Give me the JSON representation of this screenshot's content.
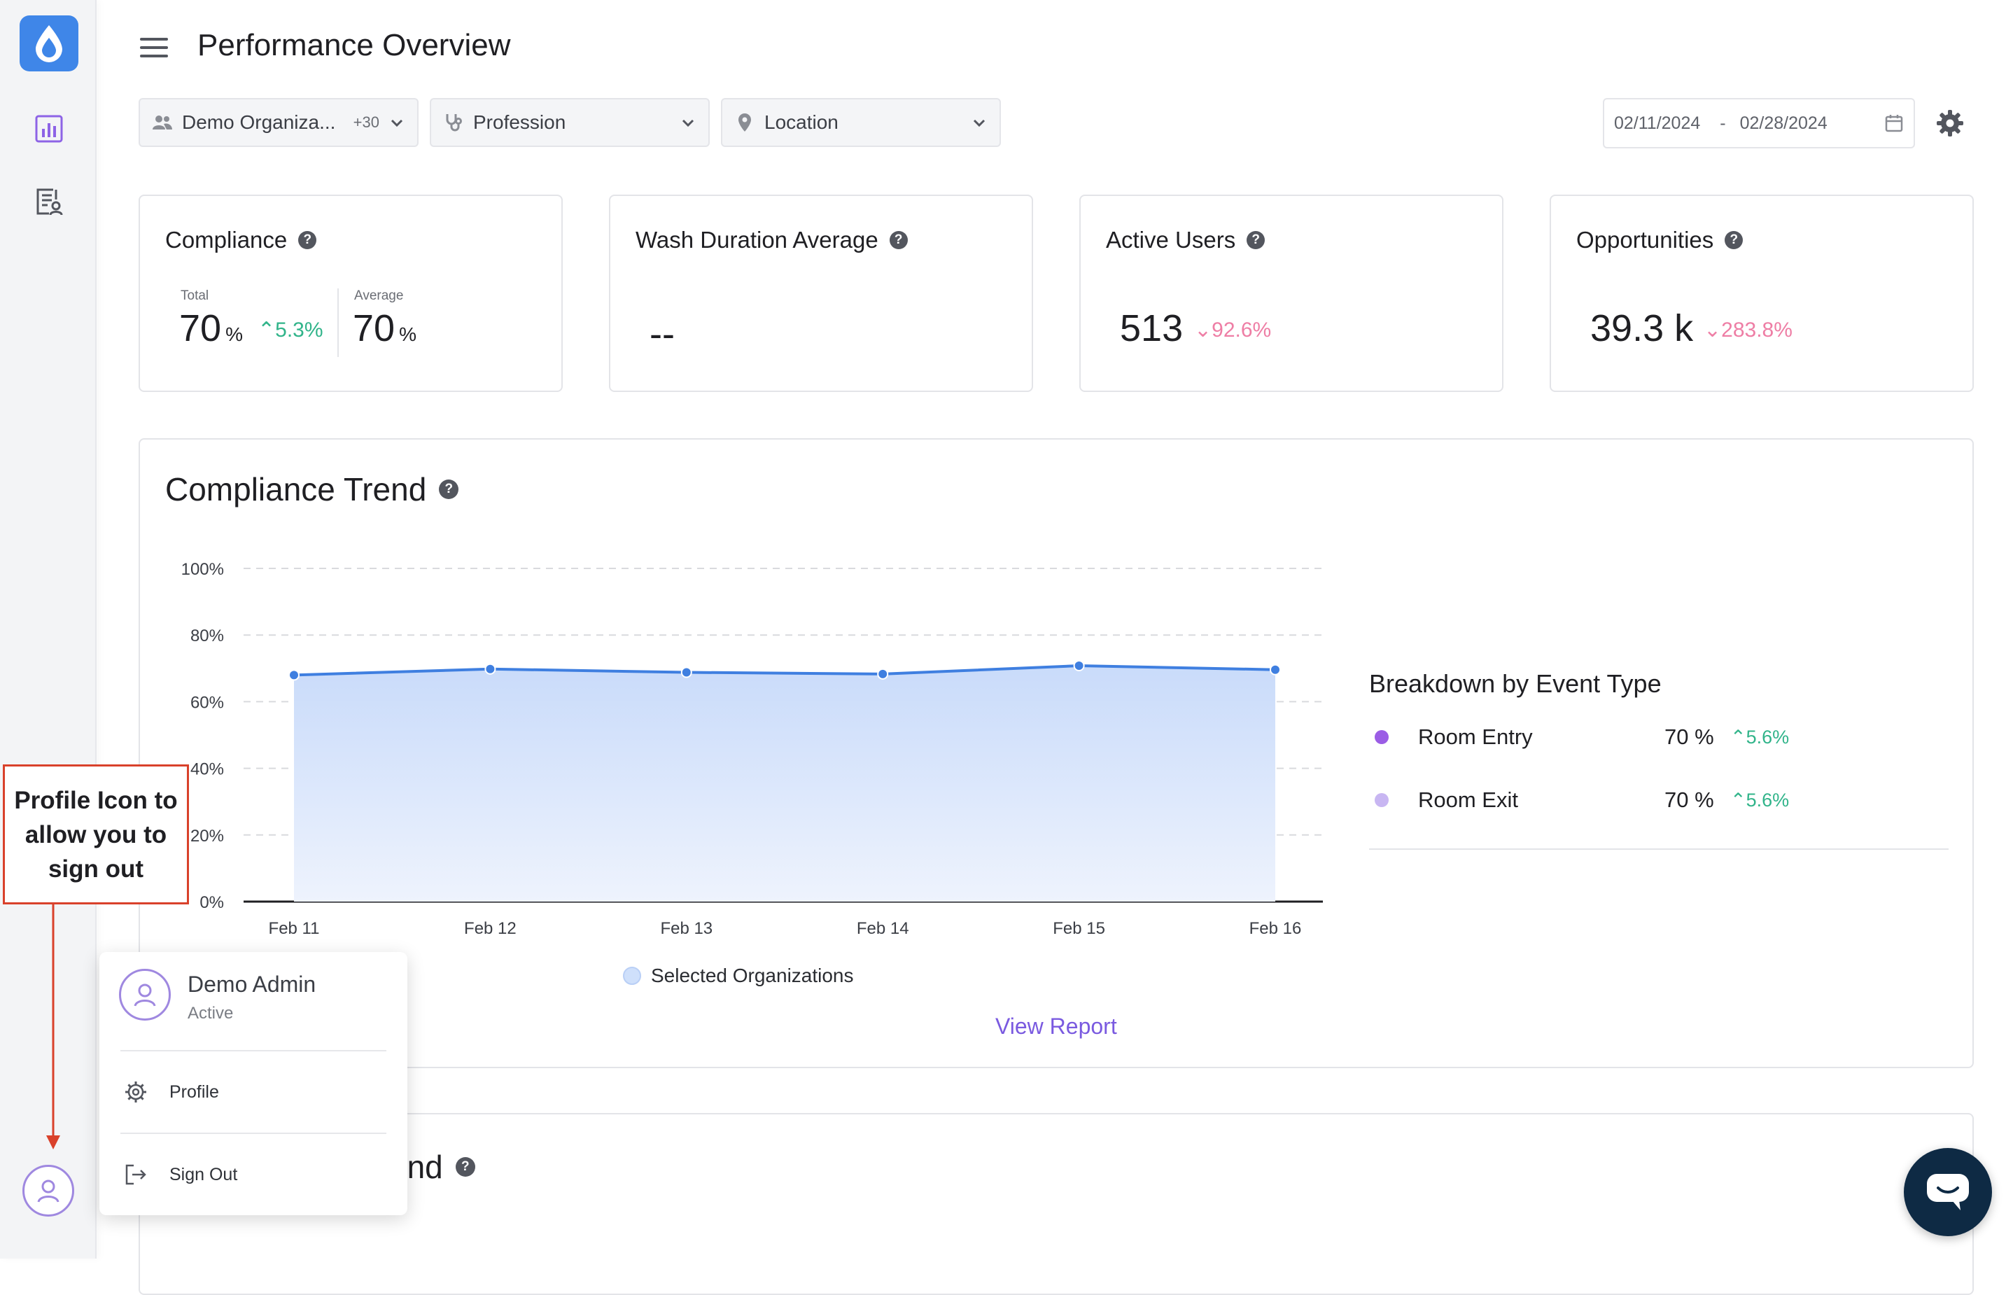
{
  "page": {
    "title": "Performance Overview"
  },
  "sidebar": {
    "items": [
      {
        "icon": "bar-chart-icon"
      },
      {
        "icon": "report-user-icon"
      }
    ],
    "profile_icon": "user-circle-icon"
  },
  "filters": {
    "organization": {
      "label": "Demo Organiza...",
      "extra": "+30"
    },
    "profession": {
      "label": "Profession"
    },
    "location": {
      "label": "Location"
    }
  },
  "date_range": {
    "start": "02/11/2024",
    "separator": "-",
    "end": "02/28/2024"
  },
  "kpis": {
    "compliance": {
      "title": "Compliance",
      "total_label": "Total",
      "total_value": "70",
      "total_unit": "%",
      "total_delta": "5.3%",
      "average_label": "Average",
      "average_value": "70",
      "average_unit": "%"
    },
    "wash_duration": {
      "title": "Wash Duration Average",
      "value": "--"
    },
    "active_users": {
      "title": "Active Users",
      "value": "513",
      "delta": "92.6%"
    },
    "opportunities": {
      "title": "Opportunities",
      "value": "39.3 k",
      "delta": "283.8%"
    }
  },
  "compliance_trend": {
    "title": "Compliance Trend",
    "legend_label": "Selected Organizations",
    "view_report": "View Report",
    "breakdown": {
      "title": "Breakdown by Event Type",
      "rows": [
        {
          "label": "Room Entry",
          "value": "70 %",
          "delta": "5.6%",
          "color": "#9b5de5"
        },
        {
          "label": "Room Exit",
          "value": "70 %",
          "delta": "5.6%",
          "color": "#c8b6f2"
        }
      ]
    }
  },
  "chart_data": {
    "type": "area",
    "categories": [
      "Feb 11",
      "Feb 12",
      "Feb 13",
      "Feb 14",
      "Feb 15",
      "Feb 16"
    ],
    "series": [
      {
        "name": "Selected Organizations",
        "values": [
          68,
          69.8,
          68.8,
          68.3,
          70.8,
          69.6
        ]
      }
    ],
    "yticks": [
      "100%",
      "80%",
      "60%",
      "40%",
      "20%",
      "0%"
    ],
    "ylim": [
      0,
      100
    ],
    "grid": true,
    "colors": {
      "line": "#3f7fe0",
      "fill_top": "#c9dbfa",
      "fill_bottom": "#eef3fd"
    }
  },
  "second_panel": {
    "title_fragment": "end"
  },
  "profile_menu": {
    "name": "Demo Admin",
    "status": "Active",
    "items": [
      {
        "label": "Profile",
        "icon": "gear-icon"
      },
      {
        "label": "Sign Out",
        "icon": "sign-out-icon"
      }
    ]
  },
  "annotation": {
    "text": "Profile Icon to allow you to sign out"
  },
  "colors": {
    "accent": "#7a5ae0",
    "up": "#31b48a",
    "down": "#ee7ea5",
    "logo": "#3f86e8",
    "annotation": "#d9412b",
    "chat": "#0e2a44"
  }
}
